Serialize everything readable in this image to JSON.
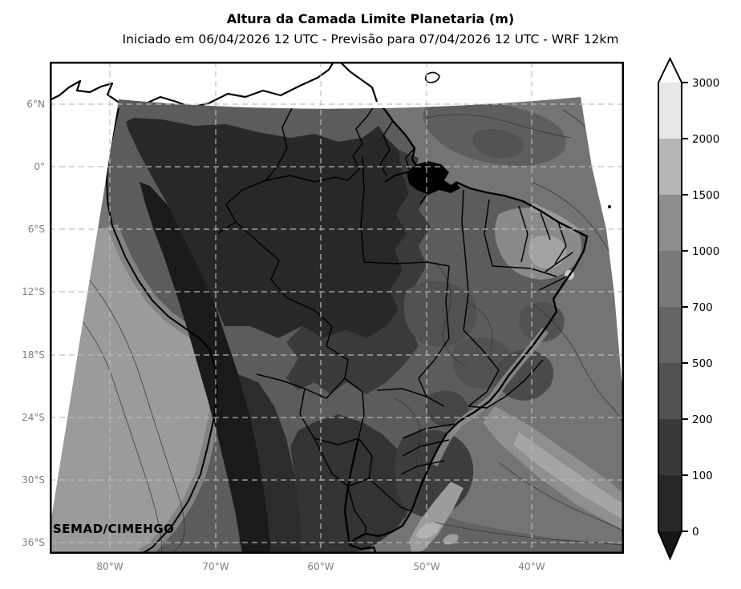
{
  "title": "Altura da Camada Limite Planetaria (m)",
  "subtitle": "Iniciado em 06/04/2026 12 UTC - Previsão para 07/04/2026 12 UTC - WRF 12km",
  "watermark": "SEMAD/CIMEHGO",
  "map": {
    "type": "filled-contour-map",
    "variable": "Altura da Camada Limite Planetaria",
    "units": "m",
    "model": "WRF 12km",
    "initialized": "06/04/2026 12 UTC",
    "valid": "07/04/2026 12 UTC",
    "lat_ticks": [
      "6°N",
      "0°",
      "6°S",
      "12°S",
      "18°S",
      "24°S",
      "30°S",
      "36°S"
    ],
    "lon_ticks": [
      "80°W",
      "70°W",
      "60°W",
      "50°W",
      "40°W"
    ]
  },
  "colorbar": {
    "extend": "both",
    "tick_labels": [
      "3000",
      "2000",
      "1500",
      "1000",
      "700",
      "500",
      "200",
      "100",
      "0"
    ],
    "levels": [
      0,
      100,
      200,
      500,
      700,
      1000,
      1500,
      2000,
      3000
    ],
    "colors_top_to_bottom": [
      "#ffffff",
      "#e7e7e7",
      "#b6b6b6",
      "#8d8d8d",
      "#797979",
      "#656565",
      "#515151",
      "#393939",
      "#282828",
      "#161616"
    ]
  },
  "colors": {
    "frame": "#000000",
    "grid": "#bdbdbd",
    "axis_label": "#7d7d7d",
    "map_base_ocean": "#747474",
    "map_land_base": "#5c5c5c",
    "coastline": "#000000"
  }
}
